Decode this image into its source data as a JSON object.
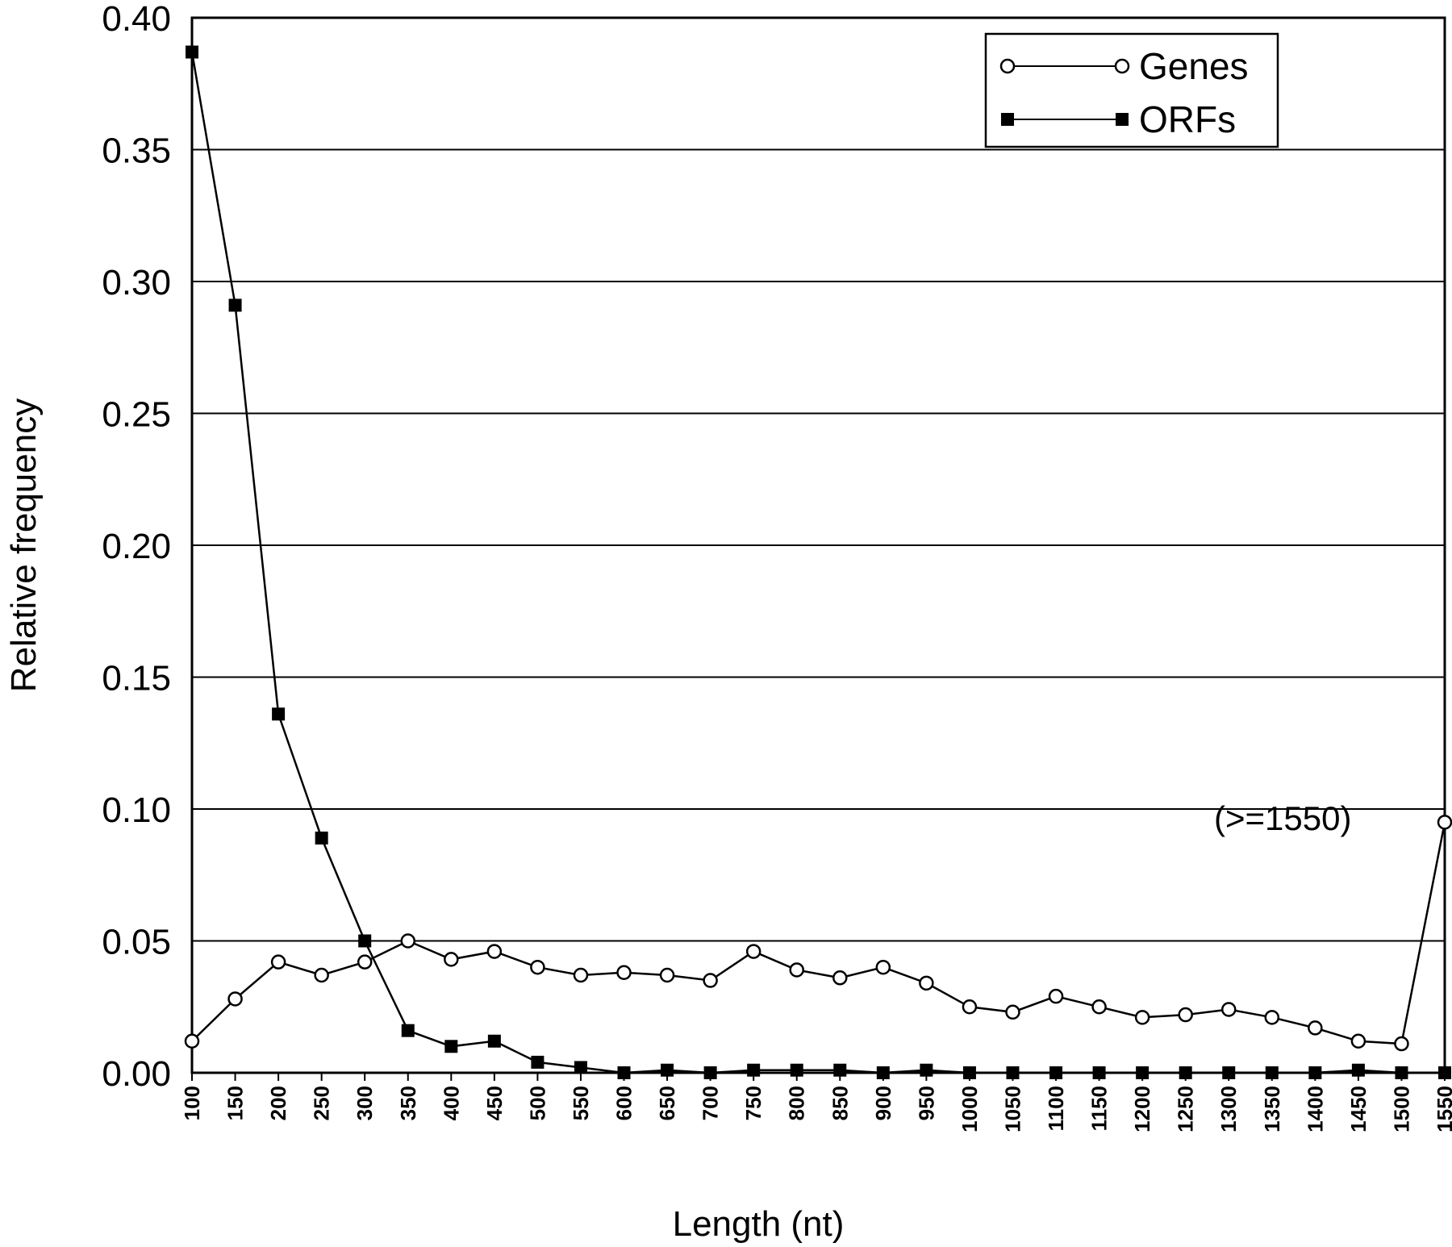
{
  "chart_data": {
    "type": "line",
    "title": "",
    "xlabel": "Length (nt)",
    "ylabel": "Relative frequency",
    "x": [
      100,
      150,
      200,
      250,
      300,
      350,
      400,
      450,
      500,
      550,
      600,
      650,
      700,
      750,
      800,
      850,
      900,
      950,
      1000,
      1050,
      1100,
      1150,
      1200,
      1250,
      1300,
      1350,
      1400,
      1450,
      1500,
      1550
    ],
    "x_tick_labels": [
      "100",
      "150",
      "200",
      "250",
      "300",
      "350",
      "400",
      "450",
      "500",
      "550",
      "600",
      "650",
      "700",
      "750",
      "800",
      "850",
      "900",
      "950",
      "1000",
      "1050",
      "1100",
      "1150",
      "1200",
      "1250",
      "1300",
      "1350",
      "1400",
      "1450",
      "1500",
      "1550"
    ],
    "ylim": [
      0,
      0.4
    ],
    "y_ticks": [
      0.0,
      0.05,
      0.1,
      0.15,
      0.2,
      0.25,
      0.3,
      0.35,
      0.4
    ],
    "y_tick_labels": [
      "0.00",
      "0.05",
      "0.10",
      "0.15",
      "0.20",
      "0.25",
      "0.30",
      "0.35",
      "0.40"
    ],
    "grid": "horizontal",
    "legend_position": "top-right",
    "series": [
      {
        "name": "Genes",
        "marker": "open-circle",
        "color": "#000000",
        "values": [
          0.012,
          0.028,
          0.042,
          0.037,
          0.042,
          0.05,
          0.043,
          0.046,
          0.04,
          0.037,
          0.038,
          0.037,
          0.035,
          0.046,
          0.039,
          0.036,
          0.04,
          0.034,
          0.025,
          0.023,
          0.029,
          0.025,
          0.021,
          0.022,
          0.024,
          0.021,
          0.017,
          0.012,
          0.011,
          0.095
        ]
      },
      {
        "name": "ORFs",
        "marker": "filled-square",
        "color": "#000000",
        "values": [
          0.387,
          0.291,
          0.136,
          0.089,
          0.05,
          0.016,
          0.01,
          0.012,
          0.004,
          0.002,
          0.0,
          0.001,
          0.0,
          0.001,
          0.001,
          0.001,
          0.0,
          0.001,
          0.0,
          0.0,
          0.0,
          0.0,
          0.0,
          0.0,
          0.0,
          0.0,
          0.0,
          0.001,
          0.0,
          0.0
        ]
      }
    ],
    "annotations": [
      {
        "text": "(>=1550)",
        "x": 1550,
        "series": "Genes"
      }
    ]
  }
}
